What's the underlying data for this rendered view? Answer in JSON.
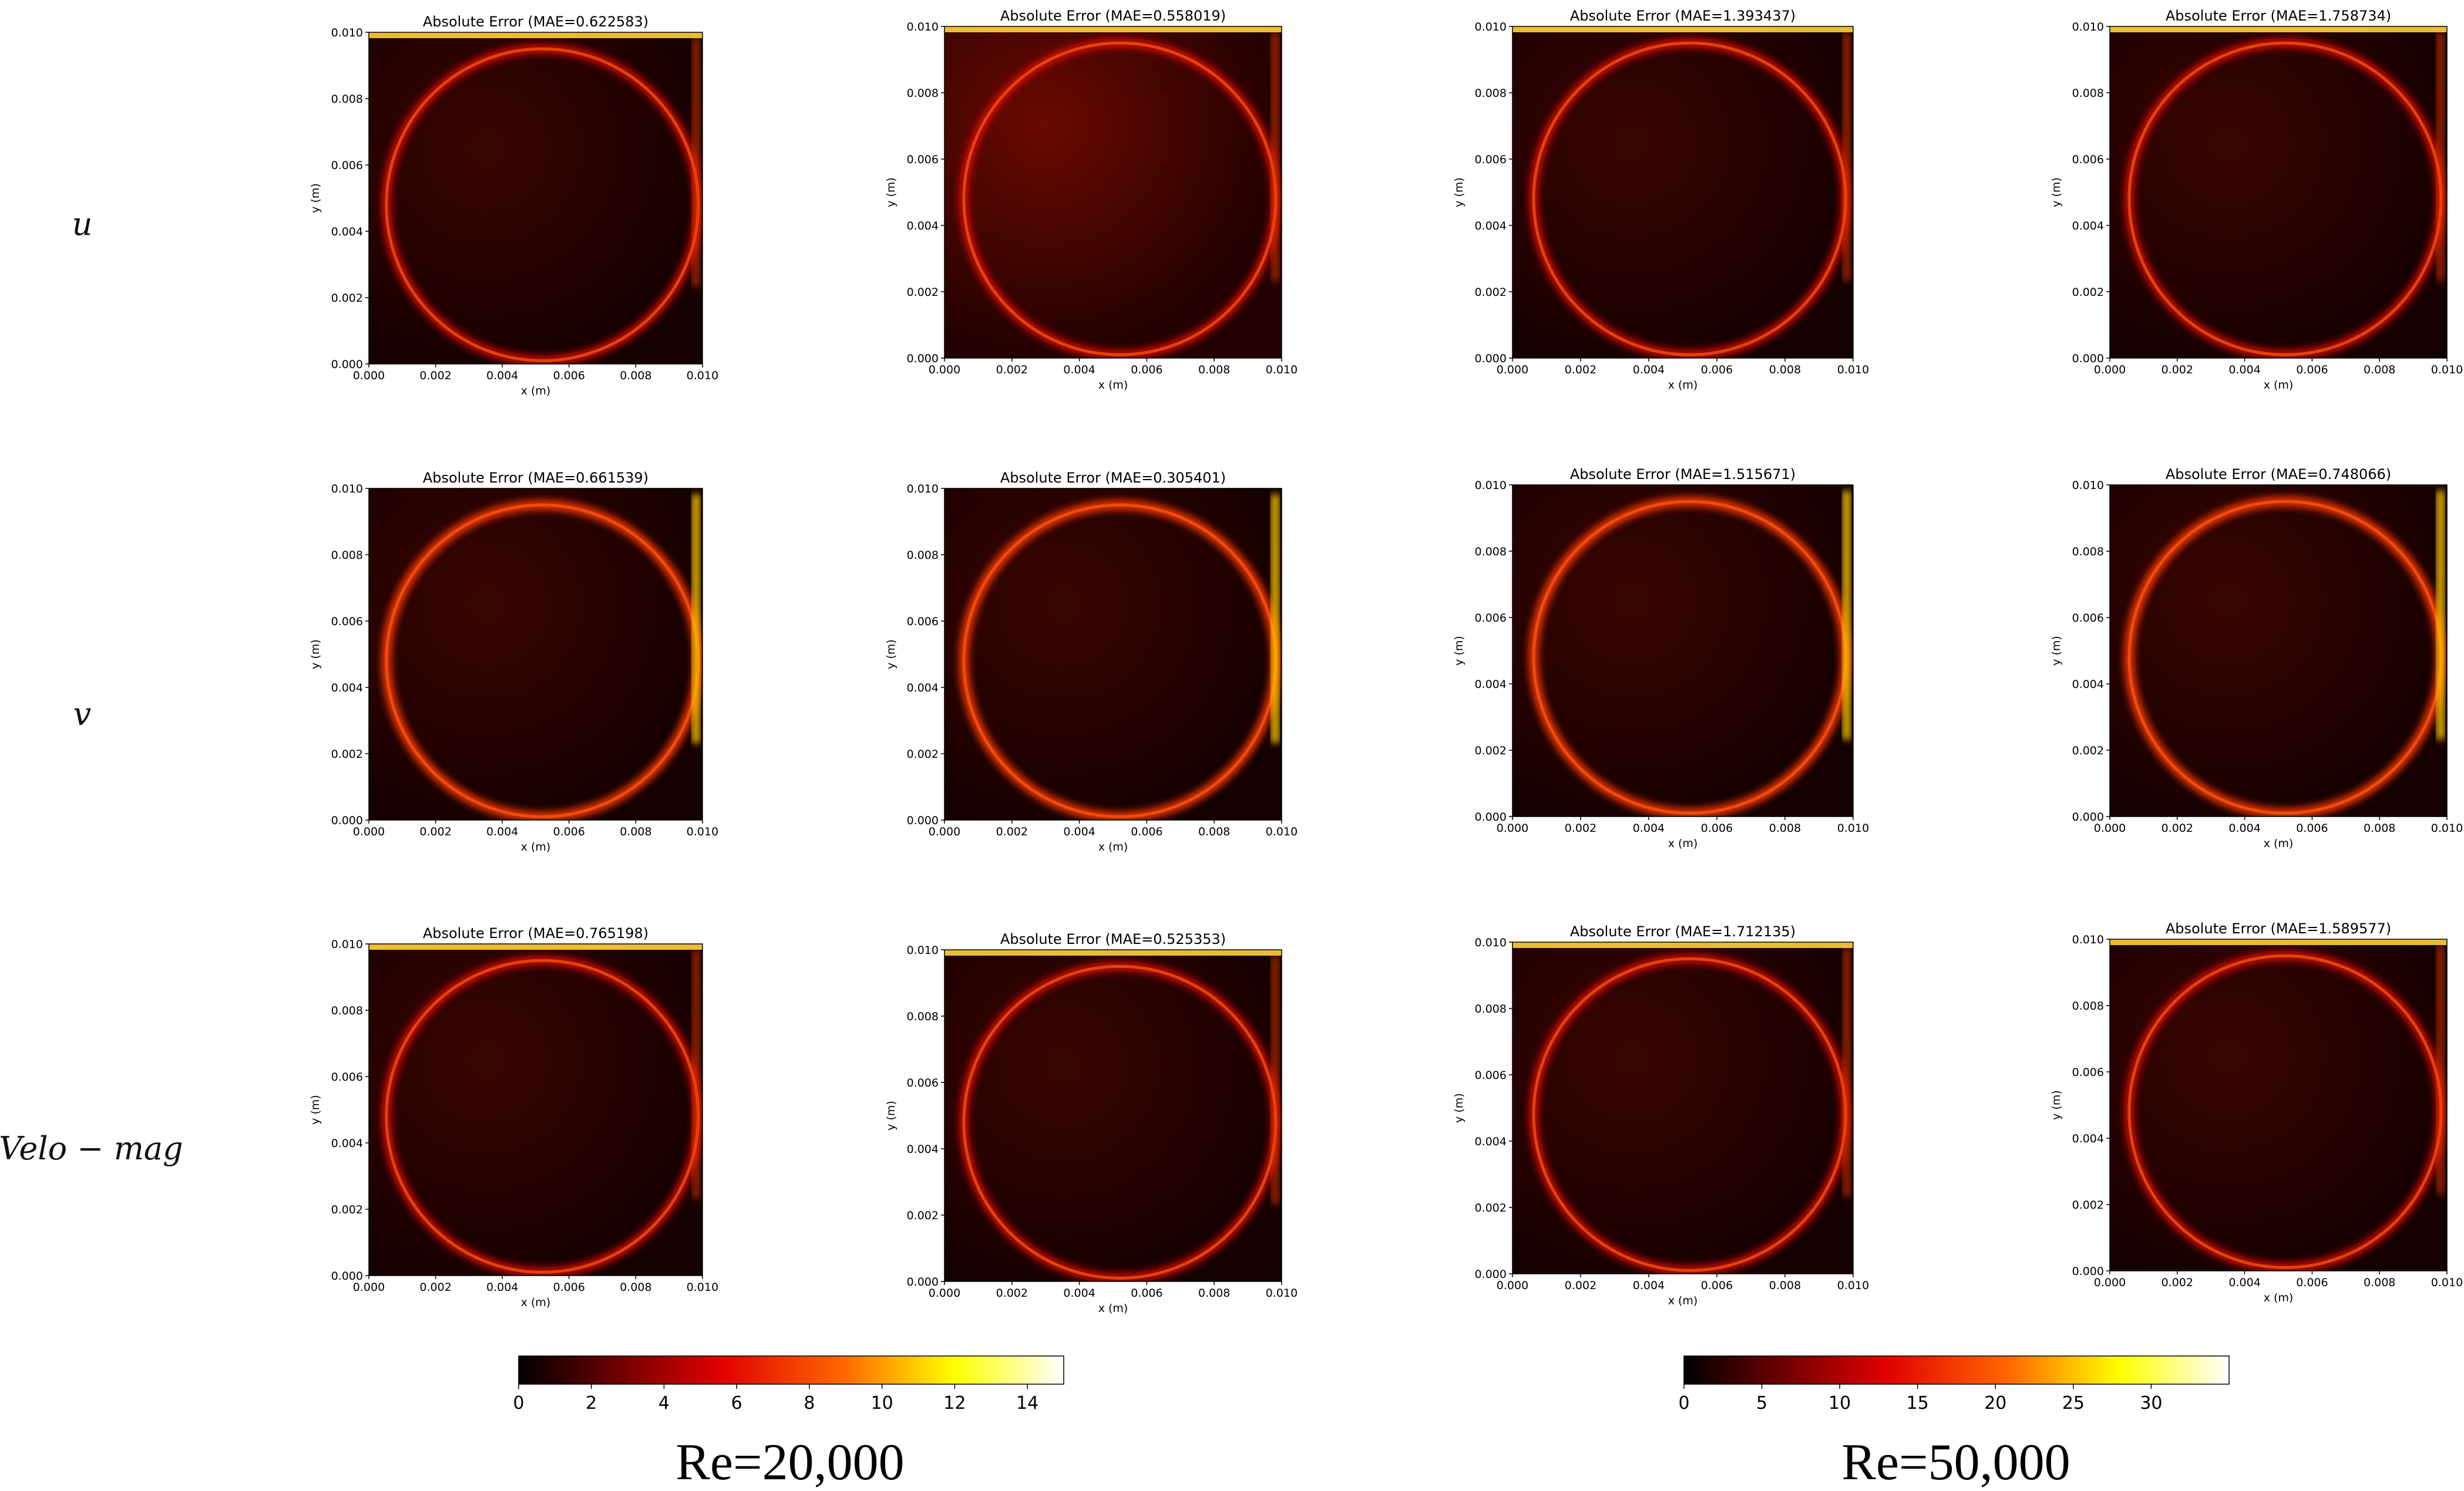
{
  "chart_data": {
    "type": "heatmap",
    "title": "",
    "row_labels": [
      "u",
      "v",
      "Velo − mag"
    ],
    "group_labels": [
      "Re=20,000",
      "Re=50,000"
    ],
    "axes": {
      "xlabel": "x (m)",
      "ylabel": "y (m)",
      "xlim": [
        0,
        0.01
      ],
      "ylim": [
        0,
        0.01
      ],
      "ticks": [
        "0.000",
        "0.002",
        "0.004",
        "0.006",
        "0.008",
        "0.010"
      ]
    },
    "colormap": "hot",
    "colorbars": [
      {
        "group": "Re=20,000",
        "range": [
          0,
          15
        ],
        "ticks": [
          "0",
          "2",
          "4",
          "6",
          "8",
          "10",
          "12",
          "14"
        ]
      },
      {
        "group": "Re=50,000",
        "range": [
          0,
          35
        ],
        "ticks": [
          "0",
          "5",
          "10",
          "15",
          "20",
          "25",
          "30"
        ]
      }
    ],
    "panels": [
      {
        "row": 0,
        "col": 0,
        "group": 0,
        "title": "Absolute Error  (MAE=0.622583)",
        "mae": 0.622583
      },
      {
        "row": 0,
        "col": 1,
        "group": 0,
        "title": "Absolute Error  (MAE=0.558019)",
        "mae": 0.558019
      },
      {
        "row": 0,
        "col": 2,
        "group": 1,
        "title": "Absolute Error  (MAE=1.393437)",
        "mae": 1.393437
      },
      {
        "row": 0,
        "col": 3,
        "group": 1,
        "title": "Absolute Error  (MAE=1.758734)",
        "mae": 1.758734
      },
      {
        "row": 1,
        "col": 0,
        "group": 0,
        "title": "Absolute Error (MAE=0.661539)",
        "mae": 0.661539
      },
      {
        "row": 1,
        "col": 1,
        "group": 0,
        "title": "Absolute Error (MAE=0.305401)",
        "mae": 0.305401
      },
      {
        "row": 1,
        "col": 2,
        "group": 1,
        "title": "Absolute Error (MAE=1.515671)",
        "mae": 1.515671
      },
      {
        "row": 1,
        "col": 3,
        "group": 1,
        "title": "Absolute Error (MAE=0.748066)",
        "mae": 0.748066
      },
      {
        "row": 2,
        "col": 0,
        "group": 0,
        "title": "Absolute Error (MAE=0.765198)",
        "mae": 0.765198
      },
      {
        "row": 2,
        "col": 1,
        "group": 0,
        "title": "Absolute Error (MAE=0.525353)",
        "mae": 0.525353
      },
      {
        "row": 2,
        "col": 2,
        "group": 1,
        "title": "Absolute Error (MAE=1.712135)",
        "mae": 1.712135
      },
      {
        "row": 2,
        "col": 3,
        "group": 1,
        "title": "Absolute Error (MAE=1.589577)",
        "mae": 1.589577
      }
    ]
  }
}
